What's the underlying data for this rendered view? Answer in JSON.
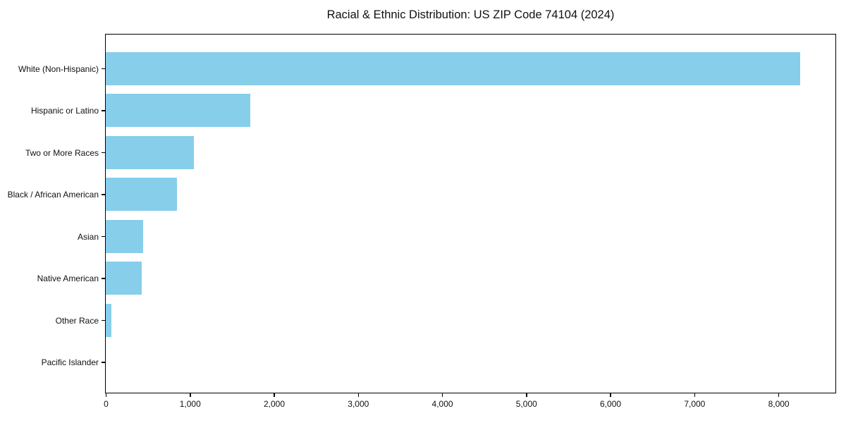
{
  "title": "Racial & Ethnic Distribution: US ZIP Code 74104 (2024)",
  "colors": {
    "bar": "#87CEEB",
    "axis": "#000000",
    "background": "#FFFFFF",
    "text": "#111111"
  },
  "chart_data": {
    "type": "bar",
    "orientation": "horizontal",
    "title": "Racial & Ethnic Distribution: US ZIP Code 74104 (2024)",
    "xlabel": "",
    "ylabel": "",
    "categories": [
      "White (Non-Hispanic)",
      "Hispanic or Latino",
      "Two or More Races",
      "Black / African American",
      "Asian",
      "Native American",
      "Other Race",
      "Pacific Islander"
    ],
    "values": [
      8260,
      1715,
      1050,
      850,
      440,
      425,
      65,
      0
    ],
    "xlim": [
      0,
      8670
    ],
    "x_ticks": [
      0,
      1000,
      2000,
      3000,
      4000,
      5000,
      6000,
      7000,
      8000
    ],
    "x_tick_labels": [
      "0",
      "1,000",
      "2,000",
      "3,000",
      "4,000",
      "5,000",
      "6,000",
      "7,000",
      "8,000"
    ],
    "grid": false,
    "legend": "none",
    "bar_color": "#87CEEB"
  }
}
